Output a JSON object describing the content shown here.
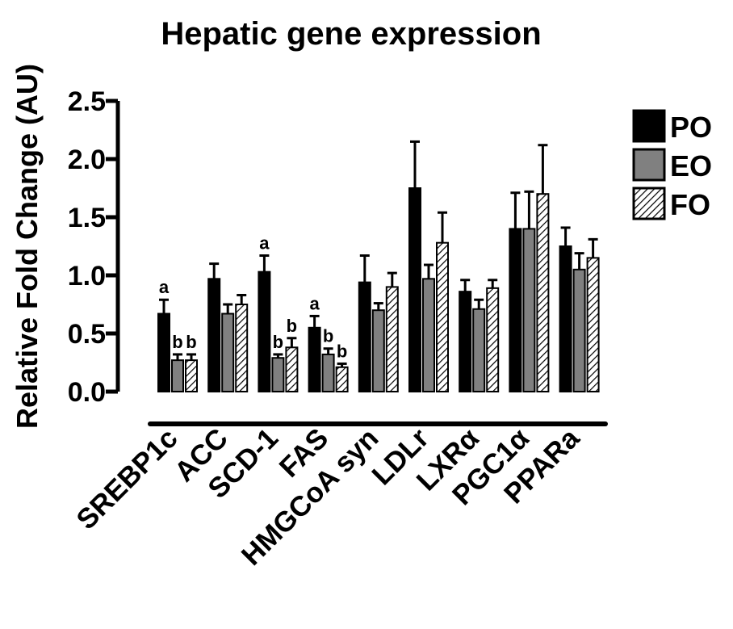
{
  "chart_data": {
    "type": "bar",
    "title": "Hepatic gene expression",
    "xlabel": "",
    "ylabel": "Relative Fold Change (AU)",
    "ylim": [
      0,
      2.5
    ],
    "yticks": [
      "0.0",
      "0.5",
      "1.0",
      "1.5",
      "2.0",
      "2.5"
    ],
    "categories": [
      "SREBP1c",
      "ACC",
      "SCD-1",
      "FAS",
      "HMGCoA syn",
      "LDLr",
      "LXRα",
      "PGC1α",
      "PPARa"
    ],
    "series": [
      {
        "name": "PO",
        "color": "#000000",
        "pattern": "solid",
        "values": [
          0.67,
          0.97,
          1.03,
          0.55,
          0.94,
          1.75,
          0.86,
          1.4,
          1.25
        ],
        "errors": [
          0.12,
          0.13,
          0.14,
          0.1,
          0.23,
          0.4,
          0.1,
          0.31,
          0.16
        ],
        "labels": [
          "a",
          "",
          "a",
          "a",
          "",
          "",
          "",
          "",
          ""
        ]
      },
      {
        "name": "EO",
        "color": "#808080",
        "pattern": "solid",
        "values": [
          0.27,
          0.67,
          0.29,
          0.32,
          0.7,
          0.97,
          0.71,
          1.4,
          1.05
        ],
        "errors": [
          0.05,
          0.08,
          0.03,
          0.05,
          0.06,
          0.12,
          0.08,
          0.32,
          0.14
        ],
        "labels": [
          "b",
          "",
          "b",
          "b",
          "",
          "",
          "",
          "",
          ""
        ]
      },
      {
        "name": "FO",
        "color": "#ffffff",
        "pattern": "diagonal-hatch",
        "values": [
          0.27,
          0.75,
          0.38,
          0.21,
          0.9,
          1.28,
          0.89,
          1.7,
          1.15
        ],
        "errors": [
          0.05,
          0.08,
          0.08,
          0.03,
          0.12,
          0.26,
          0.07,
          0.42,
          0.16
        ],
        "labels": [
          "b",
          "",
          "b",
          "b",
          "",
          "",
          "",
          "",
          ""
        ]
      }
    ],
    "legend": {
      "position": "top-right"
    },
    "grid": false
  }
}
